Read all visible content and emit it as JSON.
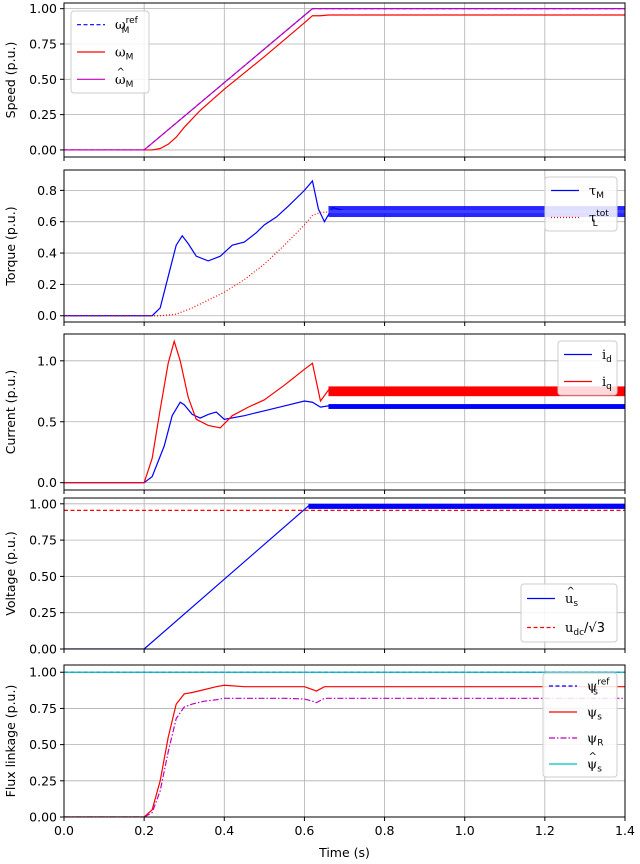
{
  "chart_data": [
    {
      "type": "line",
      "ylabel": "Speed (p.u.)",
      "xlim": [
        0,
        1.4
      ],
      "ylim": [
        -0.05,
        1.04
      ],
      "yticks": [
        0.0,
        0.25,
        0.5,
        0.75,
        1.0
      ],
      "ytick_labels": [
        "0.00",
        "0.25",
        "0.50",
        "0.75",
        "1.00"
      ],
      "grid": true,
      "legend_position": "upper-left",
      "series": [
        {
          "name": "ω_M^ref",
          "color": "#0000ff",
          "style": "dashed",
          "x": [
            0,
            0.2,
            0.62,
            1.4
          ],
          "y": [
            0,
            0,
            1.0,
            1.0
          ]
        },
        {
          "name": "ω_M",
          "color": "#ff0000",
          "style": "solid",
          "x": [
            0,
            0.22,
            0.24,
            0.26,
            0.28,
            0.3,
            0.34,
            0.4,
            0.5,
            0.6,
            0.62,
            0.64,
            0.66,
            0.7,
            1.4
          ],
          "y": [
            0,
            0,
            0.01,
            0.04,
            0.09,
            0.16,
            0.28,
            0.43,
            0.66,
            0.9,
            0.95,
            0.95,
            0.955,
            0.955,
            0.955
          ]
        },
        {
          "name": "ω̂_M",
          "color": "#bf00bf",
          "style": "solid",
          "x": [
            0,
            0.2,
            0.62,
            1.4
          ],
          "y": [
            0,
            0,
            1.0,
            1.0
          ]
        }
      ]
    },
    {
      "type": "line",
      "ylabel": "Torque (p.u.)",
      "xlim": [
        0,
        1.4
      ],
      "ylim": [
        -0.04,
        0.93
      ],
      "yticks": [
        0.0,
        0.2,
        0.4,
        0.6,
        0.8
      ],
      "ytick_labels": [
        "0.0",
        "0.2",
        "0.4",
        "0.6",
        "0.8"
      ],
      "grid": true,
      "legend_position": "upper-right",
      "series": [
        {
          "name": "τ_M",
          "color": "#0000ff",
          "style": "solid",
          "x": [
            0,
            0.22,
            0.24,
            0.26,
            0.28,
            0.295,
            0.31,
            0.33,
            0.36,
            0.39,
            0.42,
            0.45,
            0.48,
            0.5,
            0.53,
            0.56,
            0.6,
            0.62,
            0.635,
            0.65,
            0.67,
            0.7,
            0.75,
            1.4
          ],
          "y": [
            0,
            0,
            0.05,
            0.25,
            0.45,
            0.51,
            0.46,
            0.38,
            0.35,
            0.38,
            0.45,
            0.47,
            0.53,
            0.58,
            0.63,
            0.7,
            0.8,
            0.86,
            0.68,
            0.6,
            0.69,
            0.67,
            0.665,
            0.665
          ]
        },
        {
          "name": "τ_L^tot",
          "color": "#ff0000",
          "style": "dotted",
          "x": [
            0,
            0.24,
            0.28,
            0.32,
            0.36,
            0.4,
            0.45,
            0.5,
            0.55,
            0.6,
            0.62,
            0.64,
            0.7,
            1.4
          ],
          "y": [
            0,
            0,
            0.01,
            0.05,
            0.1,
            0.15,
            0.23,
            0.33,
            0.45,
            0.58,
            0.64,
            0.66,
            0.665,
            0.665
          ]
        }
      ]
    },
    {
      "type": "line",
      "ylabel": "Current (p.u.)",
      "xlim": [
        0,
        1.4
      ],
      "ylim": [
        -0.06,
        1.22
      ],
      "yticks": [
        0.0,
        0.5,
        1.0
      ],
      "ytick_labels": [
        "0.0",
        "0.5",
        "1.0"
      ],
      "grid": true,
      "legend_position": "upper-right",
      "series": [
        {
          "name": "i_d",
          "color": "#0000ff",
          "style": "solid",
          "x": [
            0,
            0.2,
            0.22,
            0.25,
            0.27,
            0.29,
            0.3,
            0.32,
            0.34,
            0.36,
            0.38,
            0.4,
            0.45,
            0.5,
            0.55,
            0.6,
            0.62,
            0.64,
            0.66,
            0.7,
            1.4
          ],
          "y": [
            0,
            0,
            0.05,
            0.3,
            0.55,
            0.66,
            0.64,
            0.56,
            0.53,
            0.56,
            0.58,
            0.52,
            0.55,
            0.59,
            0.63,
            0.67,
            0.66,
            0.62,
            0.63,
            0.625,
            0.625
          ]
        },
        {
          "name": "i_q",
          "color": "#ff0000",
          "style": "solid",
          "x": [
            0,
            0.2,
            0.22,
            0.24,
            0.26,
            0.275,
            0.29,
            0.31,
            0.33,
            0.36,
            0.39,
            0.42,
            0.46,
            0.5,
            0.55,
            0.6,
            0.62,
            0.64,
            0.66,
            0.7,
            1.4
          ],
          "y": [
            0,
            0,
            0.2,
            0.6,
            0.98,
            1.16,
            1.0,
            0.7,
            0.52,
            0.47,
            0.45,
            0.55,
            0.62,
            0.68,
            0.8,
            0.93,
            0.98,
            0.67,
            0.76,
            0.75,
            0.75
          ]
        }
      ]
    },
    {
      "type": "line",
      "ylabel": "Voltage (p.u.)",
      "xlim": [
        0,
        1.4
      ],
      "ylim": [
        0,
        1.04
      ],
      "yticks": [
        0.0,
        0.25,
        0.5,
        0.75,
        1.0
      ],
      "ytick_labels": [
        "0.00",
        "0.25",
        "0.50",
        "0.75",
        "1.00"
      ],
      "grid": true,
      "legend_position": "lower-right",
      "series": [
        {
          "name": "û_s",
          "color": "#0000ff",
          "style": "solid",
          "x": [
            0,
            0.2,
            0.61,
            1.4
          ],
          "y": [
            0,
            0,
            0.985,
            0.985
          ]
        },
        {
          "name": "u_dc/√3",
          "color": "#ff0000",
          "style": "dashed",
          "x": [
            0,
            1.4
          ],
          "y": [
            0.955,
            0.955
          ]
        }
      ]
    },
    {
      "type": "line",
      "ylabel": "Flux linkage (p.u.)",
      "xlabel": "Time (s)",
      "xlim": [
        0,
        1.4
      ],
      "ylim": [
        0,
        1.05
      ],
      "yticks": [
        0.0,
        0.25,
        0.5,
        0.75,
        1.0
      ],
      "ytick_labels": [
        "0.00",
        "0.25",
        "0.50",
        "0.75",
        "1.00"
      ],
      "xticks": [
        0.0,
        0.2,
        0.4,
        0.6,
        0.8,
        1.0,
        1.2,
        1.4
      ],
      "xtick_labels": [
        "0.0",
        "0.2",
        "0.4",
        "0.6",
        "0.8",
        "1.0",
        "1.2",
        "1.4"
      ],
      "grid": true,
      "legend_position": "upper-right",
      "series": [
        {
          "name": "ψ_s^ref",
          "color": "#0000ff",
          "style": "dashed",
          "x": [
            0,
            1.4
          ],
          "y": [
            1.0,
            1.0
          ]
        },
        {
          "name": "ψ_s",
          "color": "#ff0000",
          "style": "solid",
          "x": [
            0,
            0.2,
            0.22,
            0.24,
            0.26,
            0.28,
            0.3,
            0.32,
            0.35,
            0.38,
            0.4,
            0.45,
            0.5,
            0.55,
            0.6,
            0.62,
            0.63,
            0.65,
            0.7,
            1.4
          ],
          "y": [
            0,
            0,
            0.05,
            0.25,
            0.55,
            0.78,
            0.85,
            0.86,
            0.88,
            0.9,
            0.91,
            0.9,
            0.9,
            0.9,
            0.9,
            0.88,
            0.87,
            0.9,
            0.9,
            0.9
          ]
        },
        {
          "name": "ψ_R",
          "color": "#bf00bf",
          "style": "dashdot",
          "x": [
            0,
            0.2,
            0.22,
            0.24,
            0.26,
            0.28,
            0.3,
            0.32,
            0.35,
            0.38,
            0.4,
            0.45,
            0.5,
            0.55,
            0.6,
            0.62,
            0.63,
            0.65,
            0.7,
            1.4
          ],
          "y": [
            0,
            0,
            0.03,
            0.18,
            0.45,
            0.68,
            0.76,
            0.78,
            0.8,
            0.81,
            0.82,
            0.82,
            0.82,
            0.82,
            0.815,
            0.8,
            0.79,
            0.82,
            0.82,
            0.82
          ]
        },
        {
          "name": "ψ̂_s",
          "color": "#00bfbf",
          "style": "solid",
          "x": [
            0,
            1.4
          ],
          "y": [
            1.0,
            1.0
          ]
        }
      ]
    }
  ],
  "panels": [
    {
      "ylabel": "Speed (p.u.)",
      "legend": [
        {
          "base": "ω",
          "sub": "M",
          "sup": "ref",
          "hat": false
        },
        {
          "base": "ω",
          "sub": "M",
          "sup": "",
          "hat": false
        },
        {
          "base": "ω",
          "sub": "M",
          "sup": "",
          "hat": true
        }
      ]
    },
    {
      "ylabel": "Torque (p.u.)",
      "legend": [
        {
          "base": "τ",
          "sub": "M",
          "sup": "",
          "hat": false
        },
        {
          "base": "τ",
          "sub": "L",
          "sup": "tot",
          "hat": false
        }
      ]
    },
    {
      "ylabel": "Current (p.u.)",
      "legend": [
        {
          "base": "i",
          "sub": "d",
          "sup": "",
          "hat": false
        },
        {
          "base": "i",
          "sub": "q",
          "sup": "",
          "hat": false
        }
      ]
    },
    {
      "ylabel": "Voltage (p.u.)",
      "legend": [
        {
          "base": "u",
          "sub": "s",
          "sup": "",
          "hat": true
        },
        {
          "base": "u",
          "sub": "dc",
          "sup": "",
          "hat": false,
          "suffix": "/√3"
        }
      ]
    },
    {
      "ylabel": "Flux linkage (p.u.)",
      "legend": [
        {
          "base": "ψ",
          "sub": "s",
          "sup": "ref",
          "hat": false
        },
        {
          "base": "ψ",
          "sub": "s",
          "sup": "",
          "hat": false
        },
        {
          "base": "ψ",
          "sub": "R",
          "sup": "",
          "hat": false
        },
        {
          "base": "ψ",
          "sub": "s",
          "sup": "",
          "hat": true
        }
      ]
    }
  ],
  "xlabel": "Time (s)"
}
